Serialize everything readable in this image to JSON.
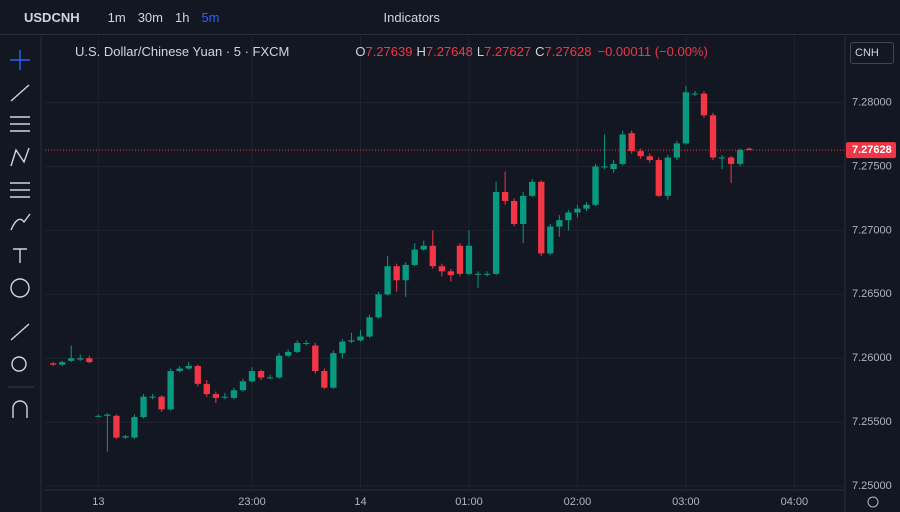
{
  "toolbar": {
    "symbol": "USDCNH",
    "intervals": [
      "1m",
      "30m",
      "1h",
      "5m"
    ],
    "active_interval": 3,
    "indicators": "Indicators"
  },
  "chart_data": {
    "type": "candlestick",
    "title": "U.S. Dollar/Chinese Yuan · 5 · FXCM",
    "ohlc_labels": [
      "O",
      "H",
      "L",
      "C"
    ],
    "change": "−0.00011 (−0.00%)",
    "currency": "CNH",
    "up_color": "#089981",
    "down_color": "#f23645",
    "grid": true,
    "categories": [
      null,
      null,
      null,
      null,
      null,
      null,
      null,
      null,
      null,
      null,
      null,
      null,
      null,
      null,
      null,
      null,
      null,
      null,
      null,
      null,
      null,
      null,
      null,
      null,
      null,
      null,
      null,
      null,
      null,
      null,
      null,
      null,
      null,
      null,
      null,
      null,
      null,
      null,
      null,
      null,
      null,
      null,
      null,
      null,
      null,
      null,
      null,
      null,
      null,
      null,
      null,
      null,
      null,
      null,
      null,
      null,
      null,
      null,
      null,
      null,
      null,
      null,
      null,
      null,
      null,
      null,
      null,
      null,
      null,
      null,
      null,
      null,
      null,
      null,
      null,
      null,
      null,
      null
    ],
    "open": [
      7.2596,
      7.2595,
      7.2598,
      7.2599,
      7.26,
      7.2555,
      7.2555,
      7.2555,
      7.2538,
      7.2538,
      7.2554,
      7.257,
      7.257,
      7.256,
      7.259,
      7.2592,
      7.2594,
      7.258,
      7.2572,
      7.257,
      7.2569,
      7.2575,
      7.2582,
      7.259,
      7.2585,
      7.2585,
      7.2602,
      7.2605,
      7.2612,
      7.261,
      7.259,
      7.2577,
      7.2604,
      7.2613,
      7.2614,
      7.2617,
      7.2632,
      7.265,
      7.2672,
      7.2661,
      7.2673,
      7.2685,
      7.2688,
      7.2672,
      7.2668,
      7.2688,
      7.2666,
      7.2666,
      7.2666,
      7.2666,
      7.273,
      7.2723,
      7.2705,
      7.2727,
      7.2738,
      7.2682,
      7.2703,
      7.2708,
      7.2714,
      7.2717,
      7.272,
      7.275,
      7.2748,
      7.2752,
      7.2776,
      7.2762,
      7.2758,
      7.2755,
      7.2727,
      7.2757,
      7.2768,
      7.2807,
      7.2807,
      7.279,
      7.2757,
      7.2757,
      7.2752,
      7.27639
    ],
    "high": [
      7.2597,
      7.2598,
      7.261,
      7.2603,
      7.2602,
      7.2556,
      7.2557,
      7.2556,
      7.254,
      7.2556,
      7.2572,
      7.2572,
      7.2571,
      7.2592,
      7.2594,
      7.2597,
      7.2595,
      7.2583,
      7.2574,
      7.2573,
      7.2577,
      7.2584,
      7.2593,
      7.2591,
      7.2587,
      7.2604,
      7.2607,
      7.2614,
      7.2614,
      7.2612,
      7.2592,
      7.2606,
      7.2615,
      7.262,
      7.2622,
      7.2634,
      7.2652,
      7.268,
      7.2674,
      7.2675,
      7.269,
      7.2692,
      7.27,
      7.2674,
      7.267,
      7.269,
      7.27,
      7.2668,
      7.2668,
      7.2738,
      7.2746,
      7.2725,
      7.273,
      7.274,
      7.2739,
      7.2705,
      7.2712,
      7.2716,
      7.272,
      7.2722,
      7.2752,
      7.2775,
      7.2755,
      7.2778,
      7.2778,
      7.2764,
      7.276,
      7.2757,
      7.2759,
      7.277,
      7.2813,
      7.2809,
      7.2809,
      7.2792,
      7.2759,
      7.2758,
      7.2764,
      7.27648
    ],
    "low": [
      7.2594,
      7.2594,
      7.2597,
      7.2598,
      7.2596,
      7.2554,
      7.2527,
      7.2537,
      7.2537,
      7.2537,
      7.2553,
      7.2568,
      7.2558,
      7.2559,
      7.2589,
      7.2591,
      7.2578,
      7.257,
      7.2565,
      7.2568,
      7.2568,
      7.2574,
      7.2581,
      7.2583,
      7.2584,
      7.2584,
      7.2601,
      7.2604,
      7.261,
      7.2588,
      7.2576,
      7.2576,
      7.26,
      7.2612,
      7.2613,
      7.2616,
      7.2631,
      7.2649,
      7.2652,
      7.2648,
      7.2672,
      7.2684,
      7.267,
      7.2664,
      7.266,
      7.2664,
      7.2665,
      7.2655,
      7.2664,
      7.2665,
      7.272,
      7.2703,
      7.269,
      7.2726,
      7.268,
      7.2681,
      7.2695,
      7.27,
      7.271,
      7.2715,
      7.2719,
      7.2748,
      7.2745,
      7.2751,
      7.276,
      7.2756,
      7.2753,
      7.2726,
      7.2724,
      7.2755,
      7.2767,
      7.2805,
      7.2788,
      7.2755,
      7.2748,
      7.2737,
      7.275,
      7.27627
    ],
    "close": [
      7.2595,
      7.2597,
      7.26,
      7.26,
      7.2597,
      7.2555,
      7.2556,
      7.2538,
      7.2539,
      7.2554,
      7.257,
      7.257,
      7.256,
      7.259,
      7.2592,
      7.2594,
      7.258,
      7.2572,
      7.2569,
      7.257,
      7.2575,
      7.2582,
      7.259,
      7.2585,
      7.2585,
      7.2602,
      7.2605,
      7.2612,
      7.2612,
      7.259,
      7.2577,
      7.2604,
      7.2613,
      7.2614,
      7.2617,
      7.2632,
      7.265,
      7.2672,
      7.2661,
      7.2673,
      7.2685,
      7.2688,
      7.2672,
      7.2668,
      7.2665,
      7.2666,
      7.2688,
      7.2666,
      7.2666,
      7.273,
      7.2723,
      7.2705,
      7.2727,
      7.2738,
      7.2682,
      7.2703,
      7.2708,
      7.2714,
      7.2717,
      7.272,
      7.275,
      7.275,
      7.2752,
      7.2775,
      7.2762,
      7.2758,
      7.2755,
      7.2727,
      7.2757,
      7.2768,
      7.2808,
      7.2807,
      7.279,
      7.2757,
      7.2757,
      7.2752,
      7.2763,
      7.27628
    ],
    "xlim": [
      -0.9,
      87.6
    ],
    "xticks": [
      {
        "value": 5,
        "label": "13"
      },
      {
        "value": 22,
        "label": "23:00"
      },
      {
        "value": 34,
        "label": "14"
      },
      {
        "value": 46,
        "label": "01:00"
      },
      {
        "value": 58,
        "label": "02:00"
      },
      {
        "value": 70,
        "label": "03:00"
      },
      {
        "value": 82,
        "label": "04:00"
      }
    ],
    "ylim": [
      7.2497,
      7.2852
    ],
    "yticks": [
      {
        "value": 7.25,
        "label": "7.25000"
      },
      {
        "value": 7.255,
        "label": "7.25500"
      },
      {
        "value": 7.26,
        "label": "7.26000"
      },
      {
        "value": 7.265,
        "label": "7.26500"
      },
      {
        "value": 7.27,
        "label": "7.27000"
      },
      {
        "value": 7.275,
        "label": "7.27500"
      },
      {
        "value": 7.28,
        "label": "7.28000"
      }
    ]
  }
}
